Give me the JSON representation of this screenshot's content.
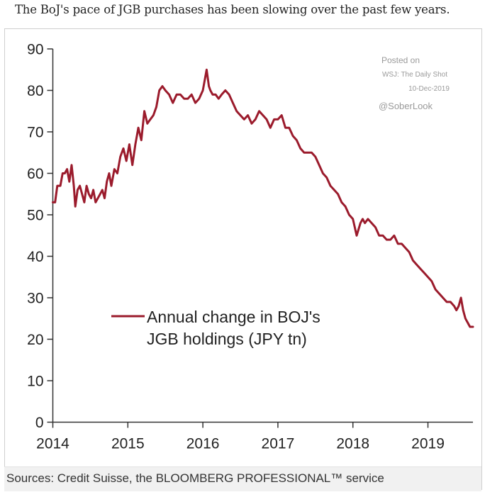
{
  "caption": "The BoJ's pace of JGB purchases has been slowing over the past few years.",
  "source": "Sources: Credit Suisse, the BLOOMBERG PROFESSIONAL™ service",
  "watermark": {
    "line1": "Posted on",
    "line2": "WSJ: The Daily Shot",
    "line3": "10-Dec-2019",
    "line4": "@SoberLook"
  },
  "chart_data": {
    "type": "line",
    "title": "",
    "xlabel": "",
    "ylabel": "",
    "xlim": [
      2014.0,
      2019.6
    ],
    "ylim": [
      0,
      90
    ],
    "y_ticks": [
      0,
      10,
      20,
      30,
      40,
      50,
      60,
      70,
      80,
      90
    ],
    "x_ticks": [
      2014,
      2015,
      2016,
      2017,
      2018,
      2019
    ],
    "x_tick_labels": [
      "2014",
      "2015",
      "2016",
      "2017",
      "2018",
      "2019"
    ],
    "y_tick_labels": [
      "0",
      "10",
      "20",
      "30",
      "40",
      "50",
      "60",
      "70",
      "80",
      "90"
    ],
    "legend": {
      "label_line1": "Annual change in BOJ's",
      "label_line2": "JGB holdings (JPY tn)",
      "position": "center-left"
    },
    "color": "#9b1b2c",
    "series": [
      {
        "name": "Annual change in BOJ's JGB holdings (JPY tn)",
        "x": [
          2014.0,
          2014.03,
          2014.06,
          2014.1,
          2014.13,
          2014.16,
          2014.19,
          2014.22,
          2014.25,
          2014.28,
          2014.3,
          2014.33,
          2014.36,
          2014.39,
          2014.42,
          2014.45,
          2014.48,
          2014.51,
          2014.54,
          2014.57,
          2014.6,
          2014.63,
          2014.66,
          2014.69,
          2014.72,
          2014.75,
          2014.78,
          2014.82,
          2014.86,
          2014.9,
          2014.94,
          2014.98,
          2015.02,
          2015.06,
          2015.1,
          2015.14,
          2015.18,
          2015.22,
          2015.26,
          2015.3,
          2015.34,
          2015.38,
          2015.42,
          2015.46,
          2015.5,
          2015.55,
          2015.6,
          2015.65,
          2015.7,
          2015.75,
          2015.8,
          2015.85,
          2015.9,
          2015.95,
          2016.0,
          2016.05,
          2016.08,
          2016.1,
          2016.13,
          2016.17,
          2016.21,
          2016.25,
          2016.3,
          2016.35,
          2016.4,
          2016.45,
          2016.5,
          2016.55,
          2016.6,
          2016.65,
          2016.7,
          2016.75,
          2016.8,
          2016.85,
          2016.9,
          2016.95,
          2017.0,
          2017.05,
          2017.1,
          2017.15,
          2017.2,
          2017.25,
          2017.3,
          2017.35,
          2017.4,
          2017.45,
          2017.5,
          2017.55,
          2017.6,
          2017.65,
          2017.7,
          2017.75,
          2017.8,
          2017.85,
          2017.9,
          2017.95,
          2018.0,
          2018.05,
          2018.1,
          2018.13,
          2018.16,
          2018.2,
          2018.25,
          2018.3,
          2018.35,
          2018.4,
          2018.45,
          2018.5,
          2018.55,
          2018.6,
          2018.65,
          2018.7,
          2018.75,
          2018.8,
          2018.85,
          2018.9,
          2018.95,
          2019.0,
          2019.05,
          2019.1,
          2019.15,
          2019.2,
          2019.25,
          2019.3,
          2019.35,
          2019.38,
          2019.41,
          2019.44,
          2019.47,
          2019.5,
          2019.53,
          2019.56,
          2019.6
        ],
        "values": [
          53,
          53,
          57,
          57,
          60,
          60,
          61,
          58,
          62,
          57,
          52,
          56,
          57,
          55,
          53,
          57,
          55,
          54,
          56,
          53,
          54,
          55,
          56,
          54,
          58,
          60,
          57,
          61,
          60,
          64,
          66,
          63,
          67,
          62,
          67,
          71,
          68,
          75,
          72,
          73,
          74,
          76,
          80,
          81,
          80,
          79,
          77,
          79,
          79,
          78,
          78,
          79,
          77,
          78,
          80,
          85,
          81,
          80,
          79,
          79,
          78,
          79,
          80,
          79,
          77,
          75,
          74,
          73,
          74,
          72,
          73,
          75,
          74,
          73,
          71,
          73,
          73,
          74,
          71,
          71,
          69,
          68,
          66,
          65,
          65,
          65,
          64,
          62,
          60,
          59,
          57,
          56,
          55,
          53,
          52,
          50,
          49,
          45,
          48,
          49,
          48,
          49,
          48,
          47,
          45,
          45,
          44,
          44,
          45,
          43,
          43,
          42,
          41,
          39,
          38,
          37,
          36,
          35,
          34,
          32,
          31,
          30,
          29,
          29,
          28,
          27,
          28,
          30,
          27,
          25,
          24,
          23,
          23
        ]
      }
    ]
  }
}
